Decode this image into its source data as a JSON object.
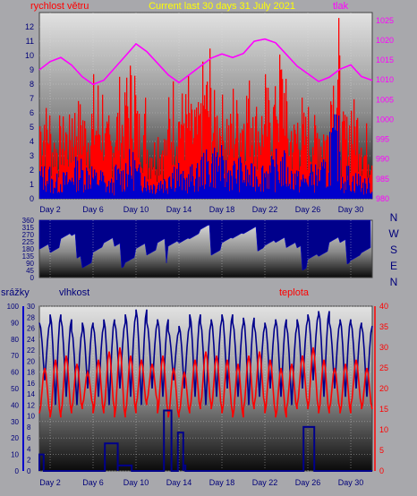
{
  "colors": {
    "bg": "#a8a8ac",
    "red": "#ff0000",
    "blue": "#0000cc",
    "darkblue": "#00008b",
    "magenta": "#ff00ff",
    "yellow": "#ffff00",
    "navy_text": "#00007a",
    "grid": "#dddddd"
  },
  "chart_data": [
    {
      "id": "wind",
      "type": "bar",
      "title": "Current last 30 days 31 July 2021",
      "left_label": "rychlost větru",
      "right_label": "tlak",
      "x_ticks": [
        "Day 2",
        "Day 6",
        "Day 10",
        "Day 14",
        "Day 18",
        "Day 22",
        "Day 26",
        "Day 30"
      ],
      "x_range": [
        1,
        32
      ],
      "y_left_ticks": [
        "0",
        "1",
        "2",
        "3",
        "4",
        "5",
        "6",
        "7",
        "8",
        "9",
        "10",
        "11",
        "12"
      ],
      "y_left_range": [
        0,
        13
      ],
      "y_right_ticks": [
        "980",
        "985",
        "990",
        "995",
        "1000",
        "1005",
        "1010",
        "1015",
        "1020",
        "1025"
      ],
      "y_right_range": [
        980,
        1027
      ],
      "gust_max_per_day": [
        8.2,
        6.1,
        7.0,
        8.5,
        7.8,
        9.0,
        6.5,
        8.8,
        11.0,
        8.0,
        5.5,
        6.0,
        9.0,
        9.3,
        8.0,
        11.5,
        9.0,
        7.5,
        8.8,
        10.5,
        8.5,
        9.5,
        12.6,
        7.0,
        7.5,
        7.0,
        7.0,
        13.0,
        7.2,
        8.5,
        5.5
      ],
      "avg_max_per_day": [
        2.5,
        1.8,
        2.0,
        3.0,
        2.8,
        2.2,
        1.5,
        2.5,
        3.5,
        2.5,
        1.5,
        1.8,
        3.0,
        2.0,
        2.5,
        3.5,
        4.0,
        3.0,
        3.0,
        2.5,
        2.8,
        3.0,
        3.5,
        2.5,
        2.0,
        2.5,
        2.8,
        6.0,
        2.5,
        2.0,
        1.5
      ],
      "pressure_hpa": [
        1013,
        1015,
        1016,
        1014,
        1011,
        1009,
        1010,
        1013,
        1016,
        1019,
        1017,
        1014,
        1011,
        1009,
        1011,
        1013,
        1015,
        1016,
        1015,
        1016,
        1019,
        1021,
        1020,
        1017,
        1014,
        1012,
        1010,
        1011,
        1013,
        1014,
        1011,
        1010
      ]
    },
    {
      "id": "direction",
      "type": "area",
      "y_left_ticks": [
        "0",
        "45",
        "90",
        "135",
        "180",
        "225",
        "270",
        "315",
        "360"
      ],
      "y_left_range": [
        0,
        360
      ],
      "right_labels": [
        "N",
        "W",
        "S",
        "E",
        "N"
      ],
      "x_ticks": [
        "Day 2",
        "Day 6",
        "Day 10",
        "Day 14",
        "Day 18",
        "Day 22",
        "Day 26",
        "Day 30"
      ],
      "direction_low_per_day": [
        210,
        150,
        200,
        180,
        100,
        160,
        180,
        120,
        140,
        190,
        110,
        150,
        250,
        230,
        220,
        240,
        200,
        240,
        230,
        220,
        220,
        230,
        210,
        140,
        100,
        150,
        130,
        180,
        140,
        150,
        160
      ],
      "direction_high": 360
    },
    {
      "id": "climate",
      "type": "line",
      "left_label_1": "srážky",
      "left_label_2": "vlhkost",
      "right_label": "teplota",
      "x_ticks": [
        "Day 2",
        "Day 6",
        "Day 10",
        "Day 14",
        "Day 18",
        "Day 22",
        "Day 26",
        "Day 30"
      ],
      "y_humidity_ticks": [
        "0",
        "10",
        "20",
        "30",
        "40",
        "50",
        "60",
        "70",
        "80",
        "90",
        "100"
      ],
      "y_rain_ticks": [
        "0",
        "2",
        "4",
        "6",
        "8",
        "10",
        "12",
        "14",
        "16",
        "18",
        "20",
        "22",
        "24",
        "26",
        "28",
        "30"
      ],
      "y_temp_ticks": [
        "0",
        "5",
        "10",
        "15",
        "20",
        "25",
        "30",
        "35",
        "40"
      ],
      "y_temp_range": [
        0,
        40
      ],
      "temp_min_per_day": [
        14,
        13,
        14,
        15,
        16,
        14,
        15,
        13,
        14,
        16,
        17,
        14,
        13,
        14,
        15,
        16,
        15,
        14,
        13,
        15,
        16,
        14,
        13,
        15,
        16,
        15,
        14,
        15,
        14,
        16,
        15
      ],
      "temp_max_per_day": [
        25,
        27,
        28,
        26,
        24,
        27,
        29,
        30,
        28,
        27,
        26,
        28,
        25,
        24,
        27,
        29,
        28,
        27,
        26,
        28,
        29,
        27,
        25,
        26,
        28,
        30,
        27,
        25,
        26,
        27,
        25
      ],
      "humidity_min_per_day": [
        55,
        40,
        45,
        40,
        50,
        45,
        40,
        50,
        45,
        40,
        50,
        45,
        55,
        50,
        45,
        40,
        45,
        50,
        45,
        40,
        45,
        50,
        45,
        40,
        50,
        55,
        45,
        50,
        45,
        50,
        45
      ],
      "humidity_max_per_day": [
        90,
        95,
        92,
        85,
        90,
        88,
        92,
        90,
        95,
        98,
        90,
        92,
        85,
        88,
        95,
        90,
        92,
        95,
        90,
        93,
        88,
        90,
        92,
        88,
        92,
        95,
        97,
        90,
        92,
        90,
        88
      ],
      "rain_steps": [
        {
          "from": 1.0,
          "to": 1.4,
          "value": 3
        },
        {
          "from": 7.1,
          "to": 8.3,
          "value": 5
        },
        {
          "from": 8.3,
          "to": 9.6,
          "value": 1
        },
        {
          "from": 12.6,
          "to": 13.3,
          "value": 11
        },
        {
          "from": 13.9,
          "to": 14.4,
          "value": 7
        },
        {
          "from": 14.4,
          "to": 14.6,
          "value": 1
        },
        {
          "from": 25.6,
          "to": 26.6,
          "value": 8
        }
      ]
    }
  ]
}
